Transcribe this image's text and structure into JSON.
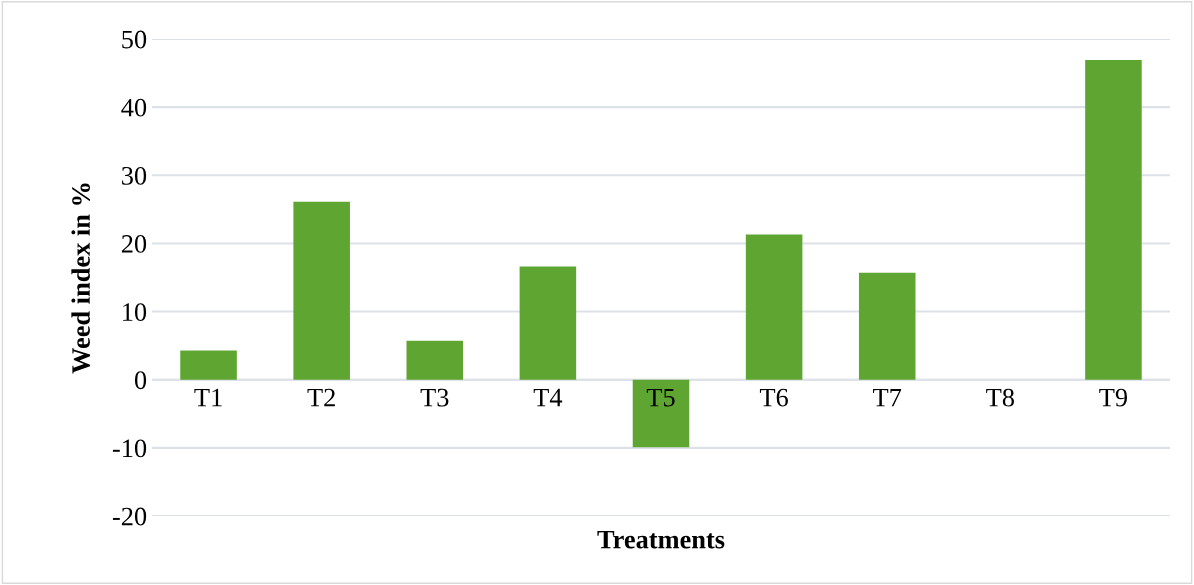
{
  "chart_data": {
    "type": "bar",
    "xlabel": "Treatments",
    "ylabel": "Weed index in %",
    "categories": [
      "T1",
      "T2",
      "T3",
      "T4",
      "T5",
      "T6",
      "T7",
      "T8",
      "T9"
    ],
    "values": [
      4.3,
      26.1,
      5.7,
      16.6,
      -9.9,
      21.3,
      15.7,
      0,
      46.9
    ],
    "color": "#5fa532",
    "ylim": [
      -20,
      50
    ],
    "yticks": [
      -20,
      -10,
      0,
      10,
      20,
      30,
      40,
      50
    ],
    "grid": "y"
  }
}
